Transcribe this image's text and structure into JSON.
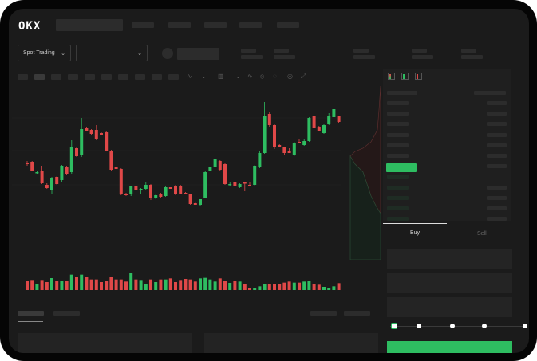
{
  "brand": {
    "logo": "OKX"
  },
  "market_selector": {
    "mode_label": "Spot Trading",
    "pair_value": ""
  },
  "order_form": {
    "tabs": [
      "Buy",
      "Sell"
    ],
    "active_tab": "Buy",
    "amount_slider_percent": 0,
    "slider_stops": [
      0,
      25,
      50,
      75,
      100
    ]
  },
  "colors": {
    "up": "#2ebd61",
    "down": "#e04848",
    "background": "#1b1b1b",
    "skeleton": "#2c2c2c"
  },
  "toolbar_icons": [
    "indicator-icon",
    "chart-type-icon",
    "interval-icon",
    "line-icon",
    "draw-icon",
    "snapshot-icon",
    "settings-icon",
    "fullscreen-icon"
  ],
  "orderbook_view_icons": [
    "both-sides-icon",
    "bids-only-icon",
    "asks-only-icon"
  ],
  "chart_data": {
    "type": "candlestick",
    "ohlc": [
      [
        96,
        98,
        92,
        94
      ],
      [
        97,
        98,
        85,
        86
      ],
      [
        83,
        85,
        82,
        84
      ],
      [
        85,
        92,
        69,
        70
      ],
      [
        68,
        70,
        63,
        64
      ],
      [
        61,
        78,
        56,
        77
      ],
      [
        78,
        79,
        68,
        69
      ],
      [
        74,
        93,
        72,
        92
      ],
      [
        91,
        92,
        81,
        82
      ],
      [
        84,
        124,
        82,
        115
      ],
      [
        114,
        116,
        103,
        104
      ],
      [
        105,
        152,
        103,
        138
      ],
      [
        140,
        141,
        135,
        135
      ],
      [
        137,
        138,
        131,
        132
      ],
      [
        137,
        143,
        124,
        125
      ],
      [
        133,
        134,
        130,
        130
      ],
      [
        134,
        136,
        110,
        111
      ],
      [
        111,
        112,
        86,
        87
      ],
      [
        91,
        92,
        87,
        88
      ],
      [
        88,
        89,
        55,
        57
      ],
      [
        57,
        58,
        54,
        55
      ],
      [
        56,
        67,
        54,
        66
      ],
      [
        67,
        70,
        61,
        62
      ],
      [
        61,
        64,
        56,
        63
      ],
      [
        63,
        72,
        62,
        68
      ],
      [
        68,
        69,
        49,
        51
      ],
      [
        51,
        56,
        50,
        55
      ],
      [
        57,
        58,
        51,
        53
      ],
      [
        54,
        67,
        53,
        65
      ],
      [
        65,
        65,
        63,
        63
      ],
      [
        67,
        68,
        55,
        56
      ],
      [
        67,
        68,
        56,
        57
      ],
      [
        58,
        59,
        56,
        57
      ],
      [
        56,
        57,
        43,
        44
      ],
      [
        45,
        46,
        43,
        43
      ],
      [
        43,
        50,
        42,
        50
      ],
      [
        52,
        86,
        51,
        84
      ],
      [
        86,
        91,
        85,
        90
      ],
      [
        90,
        104,
        89,
        100
      ],
      [
        98,
        99,
        86,
        87
      ],
      [
        94,
        96,
        68,
        69
      ],
      [
        68,
        72,
        67,
        69
      ],
      [
        72,
        73,
        67,
        67
      ],
      [
        65,
        70,
        64,
        69
      ],
      [
        71,
        72,
        60,
        70
      ],
      [
        68,
        71,
        66,
        66
      ],
      [
        68,
        93,
        67,
        92
      ],
      [
        90,
        110,
        89,
        108
      ],
      [
        108,
        172,
        107,
        155
      ],
      [
        157,
        159,
        141,
        143
      ],
      [
        143,
        144,
        113,
        115
      ],
      [
        118,
        119,
        115,
        116
      ],
      [
        115,
        116,
        106,
        108
      ],
      [
        111,
        114,
        108,
        108
      ],
      [
        105,
        122,
        104,
        121
      ],
      [
        122,
        125,
        120,
        120
      ],
      [
        118,
        125,
        117,
        123
      ],
      [
        123,
        153,
        122,
        152
      ],
      [
        154,
        155,
        139,
        140
      ],
      [
        141,
        142,
        135,
        135
      ],
      [
        133,
        145,
        132,
        143
      ],
      [
        144,
        158,
        143,
        154
      ],
      [
        153,
        168,
        152,
        163
      ],
      [
        154,
        155,
        146,
        147
      ],
      [
        144,
        153,
        143,
        151
      ]
    ],
    "volume": [
      36,
      38,
      24,
      38,
      30,
      45,
      34,
      34,
      34,
      58,
      50,
      58,
      48,
      40,
      40,
      30,
      34,
      50,
      40,
      40,
      32,
      64,
      40,
      38,
      24,
      40,
      30,
      40,
      40,
      44,
      30,
      38,
      42,
      40,
      32,
      44,
      46,
      40,
      32,
      44,
      34,
      27,
      34,
      32,
      24,
      8,
      8,
      14,
      24,
      22,
      22,
      24,
      28,
      32,
      28,
      28,
      32,
      34,
      22,
      20,
      12,
      8,
      14,
      26,
      24
    ]
  }
}
